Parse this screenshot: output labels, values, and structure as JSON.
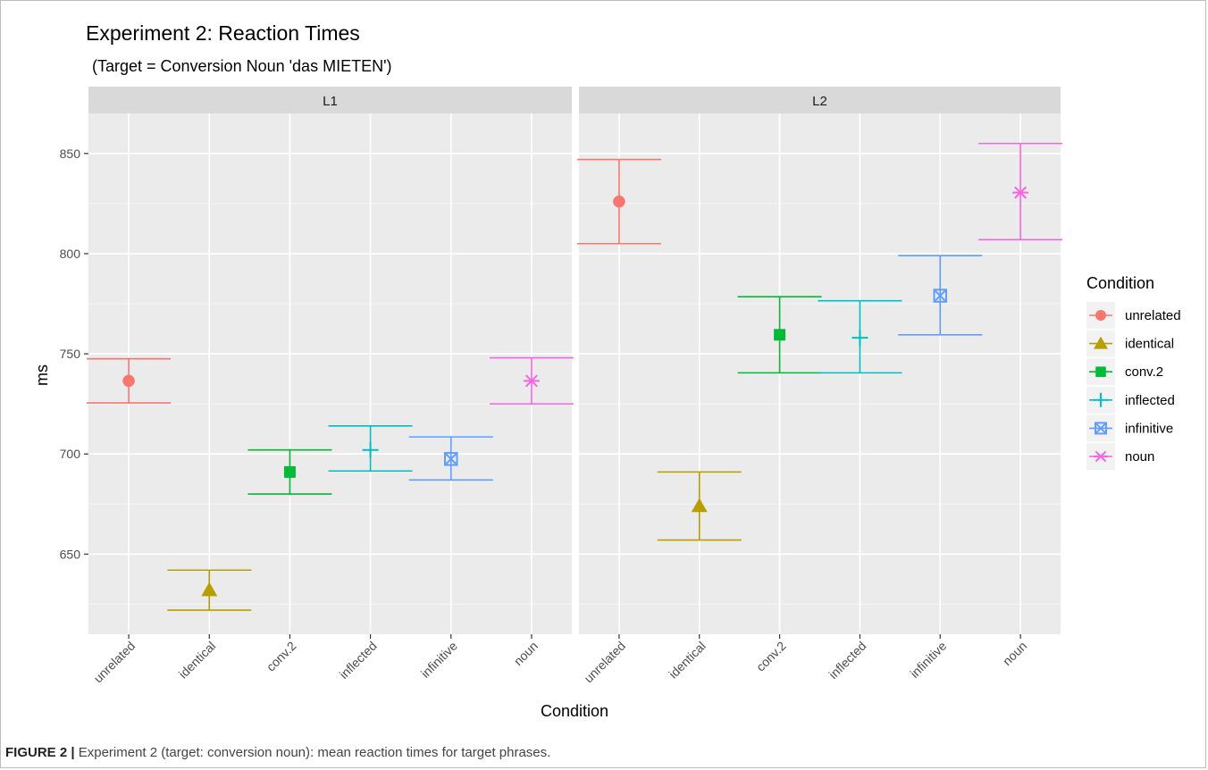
{
  "figure_caption": {
    "label": "FIGURE 2 | ",
    "text": "Experiment 2 (target: conversion noun): mean reaction times for target phrases."
  },
  "chart_data": {
    "type": "scatter",
    "title": "Experiment 2: Reaction Times",
    "subtitle": "(Target = Conversion Noun 'das MIETEN')",
    "xlabel": "Condition",
    "ylabel": "ms",
    "ylim": [
      610,
      870
    ],
    "yticks": [
      650,
      700,
      750,
      800,
      850
    ],
    "grid": true,
    "legend_title": "Condition",
    "legend_position": "right",
    "categories": [
      "unrelated",
      "identical",
      "conv.2",
      "inflected",
      "infinitive",
      "noun"
    ],
    "series_styles": [
      {
        "name": "unrelated",
        "color": "#F8766D",
        "marker": "circle"
      },
      {
        "name": "identical",
        "color": "#B79F00",
        "marker": "triangle"
      },
      {
        "name": "conv.2",
        "color": "#00BA38",
        "marker": "square"
      },
      {
        "name": "inflected",
        "color": "#00BFC4",
        "marker": "plus"
      },
      {
        "name": "infinitive",
        "color": "#619CFF",
        "marker": "boxcross"
      },
      {
        "name": "noun",
        "color": "#F564E3",
        "marker": "asterisk"
      }
    ],
    "panels": [
      {
        "label": "L1",
        "means": [
          736.5,
          632,
          691,
          702,
          697.5,
          736.5
        ],
        "lower": [
          725.5,
          622,
          680,
          691.5,
          687,
          725
        ],
        "upper": [
          747.5,
          642,
          702,
          714,
          708.5,
          748
        ]
      },
      {
        "label": "L2",
        "means": [
          826,
          674,
          759.5,
          758,
          779,
          830.5
        ],
        "lower": [
          805,
          657,
          740.5,
          740.5,
          759.5,
          807
        ],
        "upper": [
          847,
          691,
          778.5,
          776.5,
          799,
          855
        ]
      }
    ]
  }
}
